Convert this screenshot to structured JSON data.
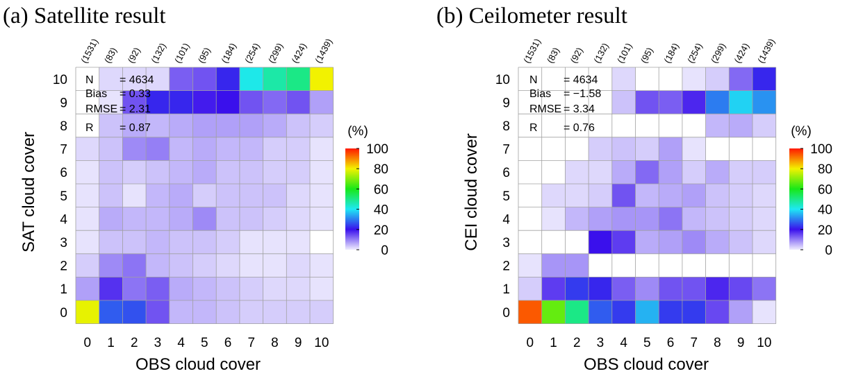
{
  "colorbar": {
    "unit_label": "(%)",
    "ticks": [
      "100",
      "80",
      "60",
      "40",
      "20",
      "0"
    ],
    "stops": [
      "#f0eefe",
      "#3a10ec",
      "#1ee8f4",
      "#18e818",
      "#f2f200",
      "#ff1800"
    ]
  },
  "chart_data": [
    {
      "type": "heatmap",
      "title": "(a) Satellite result",
      "xlabel": "OBS cloud cover",
      "ylabel": "SAT cloud cover",
      "x_ticks": [
        "0",
        "1",
        "2",
        "3",
        "4",
        "5",
        "6",
        "7",
        "8",
        "9",
        "10"
      ],
      "y_ticks": [
        "0",
        "1",
        "2",
        "3",
        "4",
        "5",
        "6",
        "7",
        "8",
        "9",
        "10"
      ],
      "counts": [
        "(1531)",
        "(83)",
        "(92)",
        "(132)",
        "(101)",
        "(95)",
        "(184)",
        "(254)",
        "(299)",
        "(424)",
        "(1439)"
      ],
      "stats": {
        "n_label": "N",
        "n_value": "= 4634",
        "bias_label": "Bias",
        "bias_value": "= 0.33",
        "rmse_label": "RMSE",
        "rmse_value": "= 2.31",
        "r_label": "R",
        "r_value": "= 0.87"
      },
      "value_range": [
        0,
        100
      ],
      "values_by_y": [
        [
          79,
          27,
          26,
          14,
          5,
          5,
          4,
          3,
          3,
          3,
          3
        ],
        [
          7,
          17,
          11,
          13,
          6,
          5,
          4,
          3,
          2,
          2,
          1
        ],
        [
          3,
          9,
          11,
          5,
          4,
          3,
          2,
          1,
          1,
          2,
          1
        ],
        [
          1,
          4,
          4,
          5,
          4,
          4,
          3,
          1,
          1,
          1,
          0
        ],
        [
          1,
          6,
          5,
          5,
          6,
          9,
          4,
          4,
          3,
          2,
          1
        ],
        [
          1,
          4,
          1,
          5,
          6,
          3,
          4,
          4,
          4,
          2,
          1
        ],
        [
          1,
          4,
          3,
          4,
          5,
          6,
          4,
          4,
          3,
          3,
          1
        ],
        [
          2,
          4,
          9,
          10,
          5,
          6,
          5,
          5,
          3,
          3,
          1
        ],
        [
          0,
          4,
          6,
          5,
          6,
          7,
          7,
          7,
          6,
          4,
          3
        ],
        [
          0,
          1,
          14,
          22,
          22,
          19,
          20,
          14,
          12,
          14,
          7
        ],
        [
          0,
          2,
          2,
          2,
          13,
          14,
          22,
          41,
          47,
          50,
          80
        ]
      ]
    },
    {
      "type": "heatmap",
      "title": "(b) Ceilometer result",
      "xlabel": "OBS cloud cover",
      "ylabel": "CEI cloud cover",
      "x_ticks": [
        "0",
        "1",
        "2",
        "3",
        "4",
        "5",
        "6",
        "7",
        "8",
        "9",
        "10"
      ],
      "y_ticks": [
        "0",
        "1",
        "2",
        "3",
        "4",
        "5",
        "6",
        "7",
        "8",
        "9",
        "10"
      ],
      "counts": [
        "(1531)",
        "(83)",
        "(92)",
        "(132)",
        "(101)",
        "(95)",
        "(184)",
        "(254)",
        "(299)",
        "(424)",
        "(1439)"
      ],
      "stats": {
        "n_label": "N",
        "n_value": "= 4634",
        "bias_label": "Bias",
        "bias_value": "= −1.58",
        "rmse_label": "RMSE",
        "rmse_value": "= 3.34",
        "r_label": "R",
        "r_value": "= 0.76"
      },
      "value_range": [
        0,
        100
      ],
      "values_by_y": [
        [
          94,
          67,
          50,
          27,
          24,
          35,
          24,
          24,
          15,
          7,
          1
        ],
        [
          3,
          16,
          24,
          22,
          13,
          9,
          14,
          14,
          18,
          15,
          11
        ],
        [
          1,
          8,
          8,
          0,
          0,
          0,
          0,
          0,
          0,
          0,
          0
        ],
        [
          0,
          0,
          0,
          20,
          16,
          6,
          7,
          9,
          6,
          4,
          2
        ],
        [
          0,
          1,
          5,
          7,
          8,
          8,
          11,
          5,
          4,
          3,
          2
        ],
        [
          0,
          2,
          2,
          3,
          14,
          5,
          6,
          7,
          4,
          3,
          2
        ],
        [
          0,
          0,
          2,
          2,
          6,
          12,
          7,
          3,
          6,
          3,
          3
        ],
        [
          0,
          0,
          0,
          3,
          4,
          3,
          7,
          1,
          0,
          0,
          0
        ],
        [
          0,
          0,
          0,
          0,
          0,
          0,
          0,
          0,
          5,
          6,
          3
        ],
        [
          0,
          0,
          0,
          0,
          4,
          14,
          13,
          18,
          30,
          38,
          32
        ],
        [
          0,
          0,
          0,
          0,
          2,
          0,
          0,
          1,
          3,
          12,
          22
        ]
      ]
    }
  ]
}
